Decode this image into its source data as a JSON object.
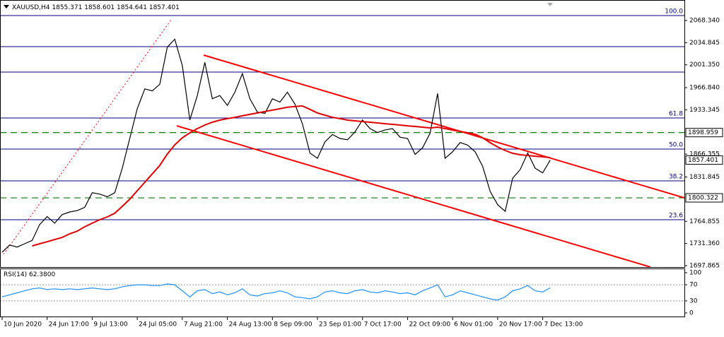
{
  "chart_data": [
    {
      "type": "line",
      "header": {
        "symbol": "XAUUSD,H4",
        "open": 1855.371,
        "high": 1858.601,
        "low": 1854.641,
        "close": 1857.401
      },
      "x": [
        0,
        1,
        2,
        3,
        4,
        5,
        6,
        7,
        8,
        9,
        10,
        11,
        12,
        13,
        14,
        15,
        16,
        17,
        18,
        19,
        20,
        21,
        22,
        23,
        24,
        25,
        26,
        27,
        28,
        29,
        30,
        31,
        32,
        33,
        34,
        35,
        36,
        37,
        38,
        39,
        40,
        41,
        42,
        43,
        44,
        45,
        46,
        47,
        48,
        49,
        50,
        51,
        52,
        53,
        54,
        55,
        56,
        57,
        58,
        59,
        60,
        61,
        62,
        63,
        64,
        65,
        66,
        67,
        68,
        69,
        70,
        71,
        72,
        73
      ],
      "series": [
        {
          "color": "#000000",
          "values": [
            1718,
            1729,
            1726,
            1731,
            1736,
            1760,
            1772,
            1762,
            1775,
            1779,
            1781,
            1786,
            1808,
            1806,
            1802,
            1808,
            1845,
            1890,
            1935,
            1965,
            1962,
            1972,
            2028,
            2040,
            2000,
            1918,
            1955,
            2005,
            1950,
            1955,
            1940,
            1960,
            1988,
            1950,
            1930,
            1928,
            1950,
            1945,
            1960,
            1942,
            1912,
            1868,
            1860,
            1885,
            1896,
            1890,
            1888,
            1900,
            1918,
            1905,
            1899,
            1903,
            1905,
            1892,
            1890,
            1866,
            1876,
            1898,
            1958,
            1860,
            1870,
            1884,
            1880,
            1870,
            1848,
            1810,
            1790,
            1780,
            1830,
            1843,
            1868,
            1845,
            1838,
            1857.401
          ]
        },
        {
          "color": "#e00000",
          "values": [
            null,
            null,
            null,
            null,
            1727.7,
            1731,
            1734,
            1737.4,
            1740.5,
            1746,
            1750,
            1756.6,
            1762,
            1767.2,
            1771.5,
            1777,
            1787.5,
            1798.2,
            1811,
            1823.8,
            1836.6,
            1849.4,
            1866.5,
            1880.4,
            1891.1,
            1898.6,
            1905,
            1910.3,
            1914.6,
            1917.8,
            1920,
            1922,
            1924.3,
            1926.5,
            1928.6,
            1930.8,
            1932.9,
            1935,
            1937.2,
            1938.3,
            1939.2,
            1934,
            1928.6,
            1925.3,
            1922,
            1920,
            1917.8,
            1916.7,
            1915.6,
            1914.6,
            1913.5,
            1912.4,
            1911.4,
            1910.3,
            1909.2,
            1908.2,
            1907.1,
            1906,
            1907.1,
            1905,
            1902.8,
            1900.7,
            1898.6,
            1896.4,
            1891.1,
            1883.6,
            1877.2,
            1871.9,
            1867.6,
            1865.5,
            1864.4,
            1863.3,
            1862.3,
            1861.2
          ]
        }
      ],
      "trendlines": [
        {
          "color": "#ff0000",
          "x": [
            26.84,
            90.87
          ],
          "values": [
            2016.0,
            1800.3
          ]
        },
        {
          "color": "#ff0000",
          "x": [
            23.26,
            86.35
          ],
          "values": [
            1909.2,
            1695.7
          ]
        },
        {
          "color": "#ff0000",
          "dashed": true,
          "x": [
            0.19,
            22.5
          ],
          "values": [
            1715.0,
            2069.4
          ]
        }
      ],
      "levels": [
        2028.8,
        1990.4
      ],
      "fib": {
        "color": "#000080",
        "prices": [
          2075.8,
          1921.0,
          1874.0,
          1826.0,
          1767.2
        ],
        "labels": [
          "100.0",
          "61.8",
          "50.0",
          "38.2",
          "23.6"
        ]
      },
      "support_levels": {
        "color": "#008000",
        "values": [
          {
            "value": 1898.959,
            "label": "1898.959"
          },
          {
            "value": 1800.322,
            "label": "1800.322"
          }
        ]
      },
      "xlim": [
        -0.28,
        90.87
      ],
      "xticks": [
        {
          "value": 0,
          "label": "10 Jun 2020"
        },
        {
          "value": 6,
          "label": "24 Jun 17:00"
        },
        {
          "value": 12,
          "label": "9 Jul 13:00"
        },
        {
          "value": 18,
          "label": "24 Jul 05:00"
        },
        {
          "value": 24,
          "label": "7 Aug 21:00"
        },
        {
          "value": 30,
          "label": "24 Aug 13:00"
        },
        {
          "value": 36,
          "label": "8 Sep 09:00"
        },
        {
          "value": 42,
          "label": "23 Sep 01:00"
        },
        {
          "value": 48,
          "label": "7 Oct 17:00"
        },
        {
          "value": 54,
          "label": "22 Oct 09:00"
        },
        {
          "value": 60,
          "label": "6 Nov 01:00"
        },
        {
          "value": 66,
          "label": "20 Nov 17:00"
        },
        {
          "value": 72,
          "label": "7 Dec 13:00"
        }
      ],
      "ylim": [
        1693.6,
        2099.3
      ],
      "yticks": [
        {
          "value": 2068.34,
          "label": "2068.340"
        },
        2034.845,
        {
          "value": 2001.35,
          "label": "2001.350"
        },
        {
          "value": 1966.84,
          "label": "1966.840"
        },
        1933.345,
        1866.355,
        1831.845,
        1764.855,
        {
          "value": 1731.36,
          "label": "1731.360"
        },
        1697.865
      ]
    },
    {
      "type": "line",
      "title": "RSI(14)",
      "current_label": "62.3800",
      "series": [
        {
          "color": "#1e90ff",
          "values": [
            40,
            45,
            50,
            55,
            60,
            62,
            58,
            60,
            58,
            60,
            58,
            60,
            62,
            60,
            58,
            60,
            65,
            68,
            70,
            70,
            68,
            68,
            72,
            70,
            55,
            40,
            55,
            58,
            48,
            52,
            45,
            50,
            60,
            45,
            42,
            48,
            50,
            55,
            50,
            40,
            38,
            35,
            40,
            52,
            55,
            50,
            48,
            55,
            58,
            52,
            50,
            55,
            52,
            48,
            50,
            45,
            55,
            62,
            70,
            40,
            45,
            55,
            50,
            45,
            40,
            35,
            32,
            40,
            55,
            60,
            68,
            55,
            52,
            62.38
          ]
        }
      ],
      "levels": [
        70,
        30
      ],
      "ylim": [
        -8.8,
        110.5
      ],
      "yticks": [
        100,
        70,
        30,
        0
      ]
    }
  ]
}
